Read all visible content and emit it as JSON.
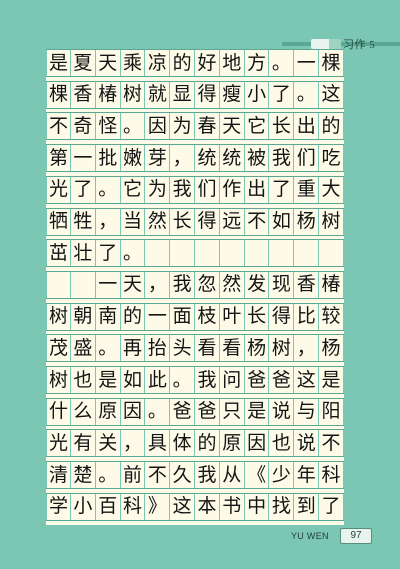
{
  "header": {
    "section": "习作 5"
  },
  "composition": {
    "rows": [
      [
        "是",
        "夏",
        "天",
        "乘",
        "凉",
        "的",
        "好",
        "地",
        "方",
        "。",
        "一",
        "棵"
      ],
      [
        "棵",
        "香",
        "椿",
        "树",
        "就",
        "显",
        "得",
        "瘦",
        "小",
        "了",
        "。",
        "这"
      ],
      [
        "不",
        "奇",
        "怪",
        "。",
        "因",
        "为",
        "春",
        "天",
        "它",
        "长",
        "出",
        "的"
      ],
      [
        "第",
        "一",
        "批",
        "嫩",
        "芽",
        "，",
        "统",
        "统",
        "被",
        "我",
        "们",
        "吃"
      ],
      [
        "光",
        "了",
        "。",
        "它",
        "为",
        "我",
        "们",
        "作",
        "出",
        "了",
        "重",
        "大"
      ],
      [
        "牺",
        "牲",
        "，",
        "当",
        "然",
        "长",
        "得",
        "远",
        "不",
        "如",
        "杨",
        "树"
      ],
      [
        "茁",
        "壮",
        "了",
        "。",
        "",
        "",
        "",
        "",
        "",
        "",
        "",
        ""
      ],
      [
        "",
        "",
        "一",
        "天",
        "，",
        "我",
        "忽",
        "然",
        "发",
        "现",
        "香",
        "椿"
      ],
      [
        "树",
        "朝",
        "南",
        "的",
        "一",
        "面",
        "枝",
        "叶",
        "长",
        "得",
        "比",
        "较"
      ],
      [
        "茂",
        "盛",
        "。",
        "再",
        "抬",
        "头",
        "看",
        "看",
        "杨",
        "树",
        "，",
        "杨"
      ],
      [
        "树",
        "也",
        "是",
        "如",
        "此",
        "。",
        "我",
        "问",
        "爸",
        "爸",
        "这",
        "是"
      ],
      [
        "什",
        "么",
        "原",
        "因",
        "。",
        "爸",
        "爸",
        "只",
        "是",
        "说",
        "与",
        "阳"
      ],
      [
        "光",
        "有",
        "关",
        "，",
        "具",
        "体",
        "的",
        "原",
        "因",
        "也",
        "说",
        "不"
      ],
      [
        "清",
        "楚",
        "。",
        "前",
        "不",
        "久",
        "我",
        "从",
        "《",
        "少",
        "年",
        "科"
      ],
      [
        "学",
        "小",
        "百",
        "科",
        "》",
        "这",
        "本",
        "书",
        "中",
        "找",
        "到",
        "了"
      ]
    ]
  },
  "footer": {
    "label": "YU WEN",
    "page": "97"
  }
}
